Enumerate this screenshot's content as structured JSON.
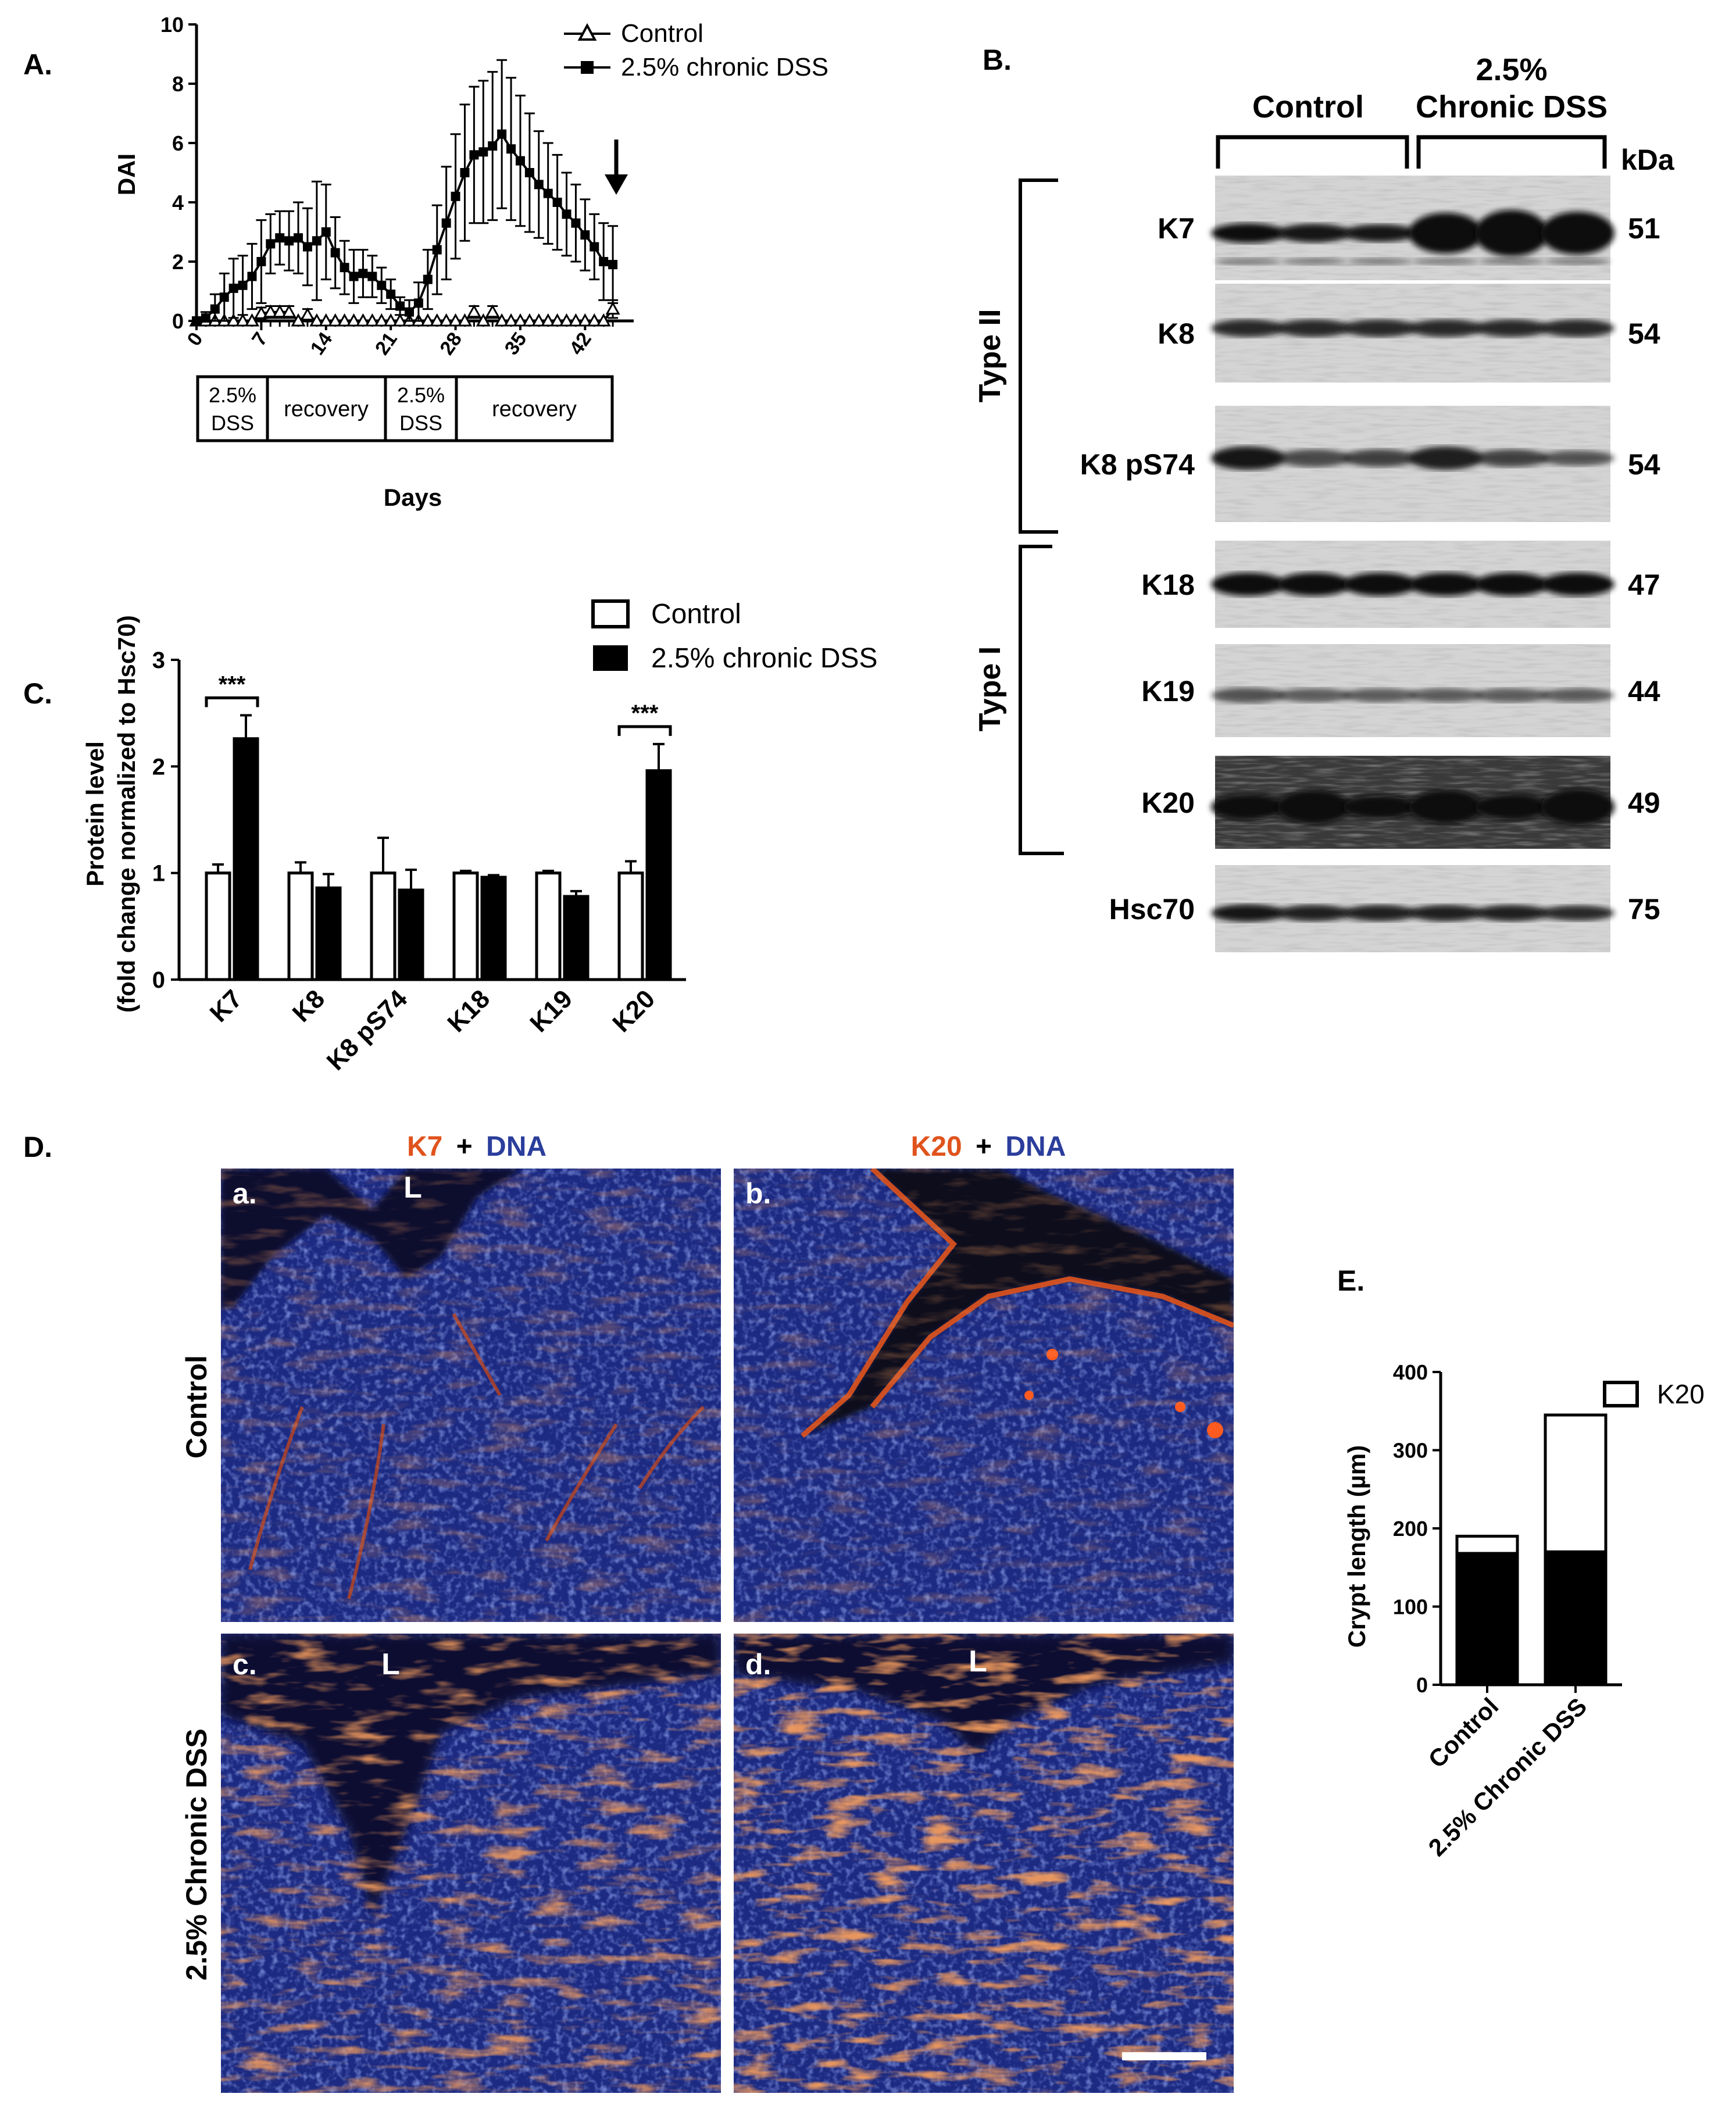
{
  "panels": {
    "A": "A.",
    "B": "B.",
    "C": "C.",
    "D": "D.",
    "E": "E."
  },
  "colors": {
    "black": "#000000",
    "white": "#ffffff",
    "k_stain": "#e0531c",
    "dna_stain": "#2b3e9c",
    "tissue_blue": "#1c2a82",
    "blot_bg": "#d6d6d6"
  },
  "chart_data": [
    {
      "id": "A",
      "type": "line",
      "title": "",
      "xlabel": "Days",
      "ylabel": "DAI",
      "xlim": [
        0,
        46
      ],
      "ylim": [
        0,
        10
      ],
      "xticks": [
        0,
        7,
        14,
        21,
        28,
        35,
        42
      ],
      "yticks": [
        0,
        2,
        4,
        6,
        8,
        10
      ],
      "legend_position": "top-right",
      "series": [
        {
          "name": "Control",
          "marker": "open-triangle",
          "x": [
            0,
            1,
            2,
            3,
            4,
            5,
            6,
            7,
            8,
            9,
            10,
            11,
            12,
            13,
            14,
            15,
            16,
            17,
            18,
            19,
            20,
            21,
            22,
            23,
            24,
            25,
            26,
            27,
            28,
            29,
            30,
            31,
            32,
            33,
            34,
            35,
            36,
            37,
            38,
            39,
            40,
            41,
            42,
            43,
            44,
            45
          ],
          "y": [
            0,
            0,
            0,
            0,
            0,
            0,
            0,
            0.25,
            0.3,
            0.3,
            0.3,
            0,
            0.2,
            0,
            0,
            0,
            0,
            0,
            0,
            0,
            0,
            0,
            0,
            0,
            0,
            0,
            0,
            0,
            0,
            0,
            0.3,
            0,
            0.3,
            0,
            0,
            0,
            0,
            0,
            0,
            0,
            0,
            0,
            0,
            0,
            0,
            0.4
          ],
          "err": [
            0,
            0,
            0,
            0,
            0,
            0,
            0,
            0.2,
            0.2,
            0.2,
            0.2,
            0,
            0.2,
            0,
            0,
            0,
            0,
            0,
            0,
            0,
            0,
            0,
            0,
            0,
            0,
            0,
            0,
            0,
            0,
            0,
            0.2,
            0,
            0.2,
            0,
            0,
            0,
            0,
            0,
            0,
            0,
            0,
            0,
            0,
            0,
            0,
            0.3
          ]
        },
        {
          "name": "2.5% chronic DSS",
          "marker": "filled-square",
          "x": [
            0,
            1,
            2,
            3,
            4,
            5,
            6,
            7,
            8,
            9,
            10,
            11,
            12,
            13,
            14,
            15,
            16,
            17,
            18,
            19,
            20,
            21,
            22,
            23,
            24,
            25,
            26,
            27,
            28,
            29,
            30,
            31,
            32,
            33,
            34,
            35,
            36,
            37,
            38,
            39,
            40,
            41,
            42,
            43,
            44,
            45
          ],
          "y": [
            0,
            0.1,
            0.4,
            0.8,
            1.1,
            1.2,
            1.5,
            2.0,
            2.6,
            2.8,
            2.7,
            2.8,
            2.5,
            2.7,
            3.0,
            2.3,
            1.8,
            1.5,
            1.6,
            1.5,
            1.2,
            0.9,
            0.5,
            0.3,
            0.6,
            1.4,
            2.4,
            3.3,
            4.2,
            5.0,
            5.6,
            5.7,
            5.9,
            6.3,
            5.8,
            5.4,
            5.0,
            4.6,
            4.3,
            4.0,
            3.6,
            3.3,
            2.9,
            2.5,
            2.0,
            1.9
          ],
          "err": [
            0,
            0.2,
            0.5,
            0.8,
            1.0,
            1.0,
            1.1,
            1.4,
            1.0,
            0.9,
            1.0,
            1.2,
            1.3,
            2.0,
            1.6,
            1.2,
            0.9,
            0.9,
            0.8,
            0.7,
            0.6,
            0.5,
            0.3,
            0.4,
            0.7,
            1.0,
            1.5,
            1.9,
            2.1,
            2.3,
            2.3,
            2.4,
            2.5,
            2.5,
            2.4,
            2.2,
            2.0,
            1.8,
            1.7,
            1.6,
            1.4,
            1.3,
            1.2,
            1.1,
            1.3,
            1.3
          ]
        }
      ],
      "treatment_schedule": [
        "2.5%",
        "DSS",
        "recovery",
        "2.5%",
        "DSS",
        "recovery"
      ]
    },
    {
      "id": "C",
      "type": "bar",
      "title": "",
      "xlabel": "",
      "ylabel_line1": "Protein level",
      "ylabel_line2": "(fold change normalized to Hsc70)",
      "ylim": [
        0,
        3
      ],
      "yticks": [
        0,
        1,
        2,
        3
      ],
      "categories": [
        "K7",
        "K8",
        "K8 pS74",
        "K18",
        "K19",
        "K20"
      ],
      "legend_position": "top-right",
      "series": [
        {
          "name": "Control",
          "fill": "white",
          "values": [
            1.0,
            1.0,
            1.0,
            1.0,
            1.0,
            1.0
          ],
          "err": [
            0.08,
            0.1,
            0.33,
            0.02,
            0.02,
            0.11
          ]
        },
        {
          "name": "2.5% chronic DSS",
          "fill": "black",
          "values": [
            2.26,
            0.86,
            0.84,
            0.96,
            0.78,
            1.96
          ],
          "err": [
            0.22,
            0.13,
            0.19,
            0.02,
            0.05,
            0.25
          ]
        }
      ],
      "significance": [
        {
          "category": "K7",
          "label": "***"
        },
        {
          "category": "K20",
          "label": "***"
        }
      ]
    },
    {
      "id": "E",
      "type": "bar",
      "title": "",
      "xlabel": "",
      "ylabel": "Crypt length (µm)",
      "ylim": [
        0,
        400
      ],
      "yticks": [
        0,
        100,
        200,
        300,
        400
      ],
      "categories": [
        "Control",
        "2.5% Chronic DSS"
      ],
      "stacked": true,
      "legend_position": "top-right",
      "series": [
        {
          "name": "",
          "fill": "black",
          "values": [
            168,
            170
          ]
        },
        {
          "name": "K20",
          "fill": "white",
          "values": [
            22,
            175
          ]
        }
      ]
    }
  ],
  "blot": {
    "group_left": "Control",
    "group_right_line1": "2.5%",
    "group_right_line2": "Chronic DSS",
    "kda_header": "kDa",
    "type2": "Type II",
    "type1": "Type I",
    "rows": [
      {
        "label": "K7",
        "kda": "51"
      },
      {
        "label": "K8",
        "kda": "54"
      },
      {
        "label": "K8 pS74",
        "kda": "54"
      },
      {
        "label": "K18",
        "kda": "47"
      },
      {
        "label": "K19",
        "kda": "44"
      },
      {
        "label": "K20",
        "kda": "49"
      },
      {
        "label": "Hsc70",
        "kda": "75"
      }
    ]
  },
  "micro": {
    "col1_title_k": "K7",
    "col2_title_k": "K20",
    "plus": "+",
    "dna": "DNA",
    "row1_label": "Control",
    "row2_label": "2.5% Chronic DSS",
    "lumen": "L",
    "sub_a": "a.",
    "sub_b": "b.",
    "sub_c": "c.",
    "sub_d": "d."
  }
}
